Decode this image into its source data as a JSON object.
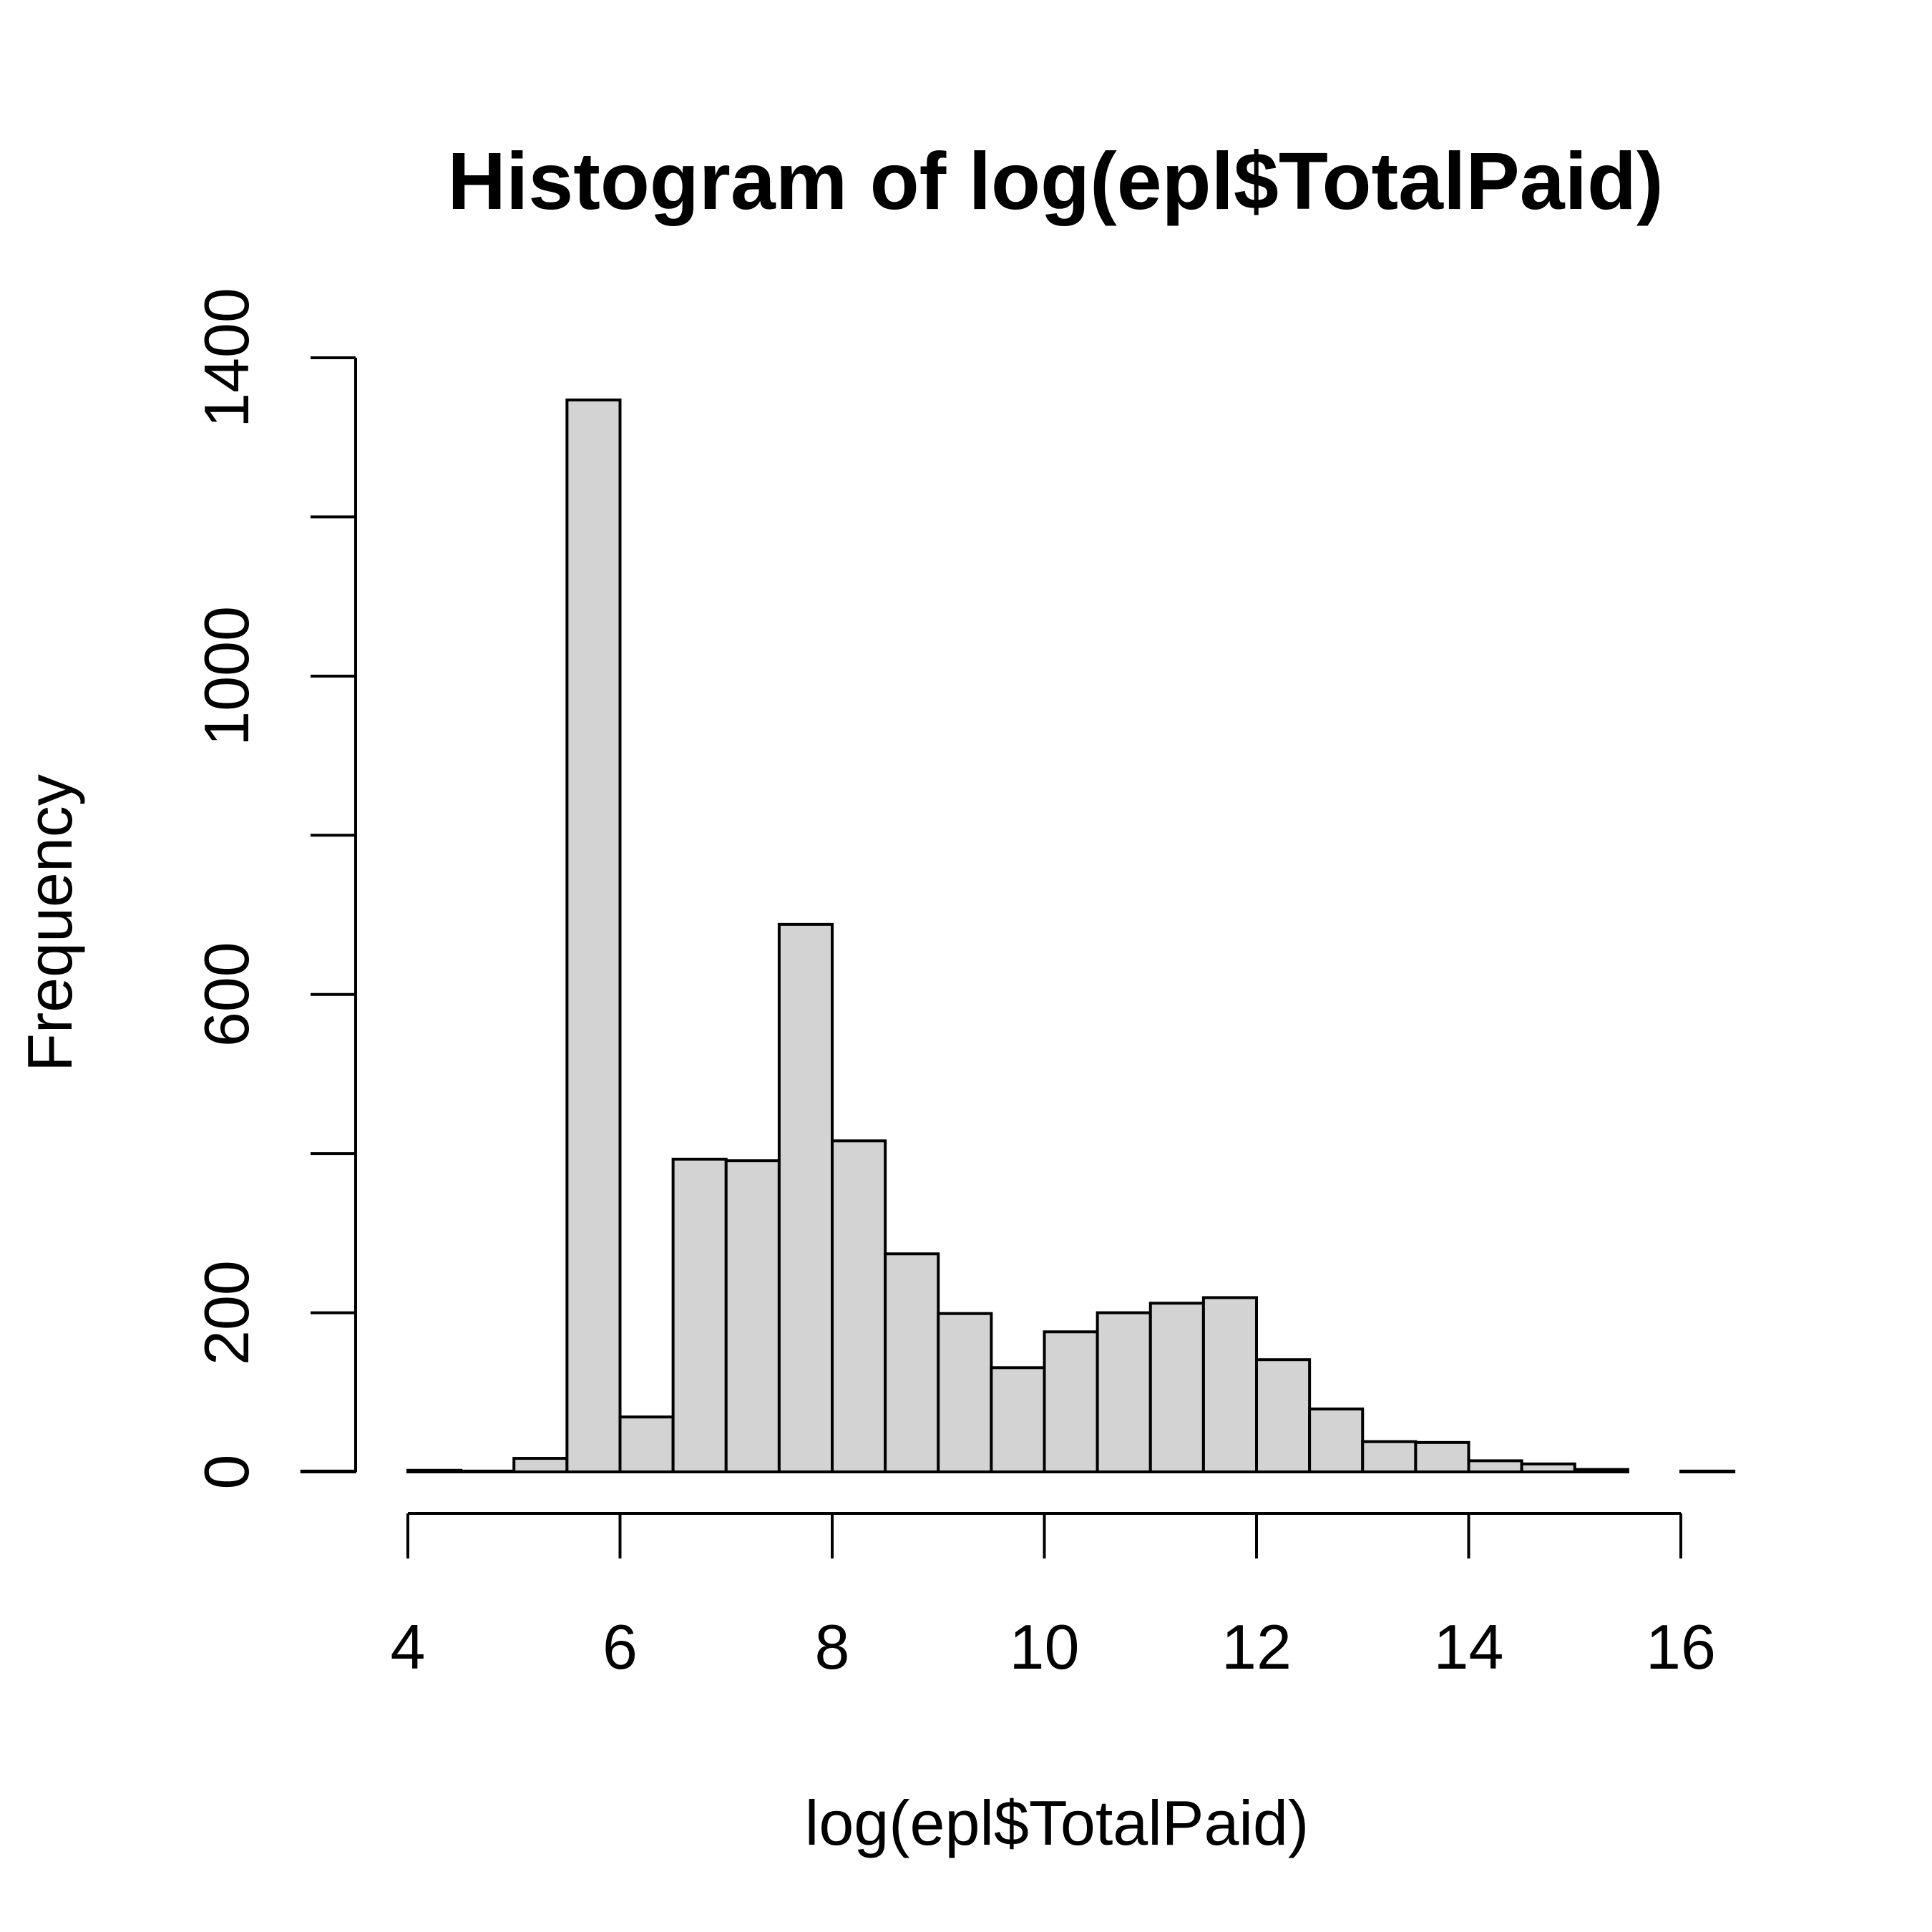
{
  "chart_data": {
    "type": "bar",
    "title": "Histogram of log(epl$TotalPaid)",
    "xlabel": "log(epl$TotalPaid)",
    "ylabel": "Frequency",
    "xlim": [
      3,
      16.5
    ],
    "ylim": [
      0,
      1400
    ],
    "x_ticks": [
      4,
      6,
      8,
      10,
      12,
      14,
      16
    ],
    "y_ticks": [
      0,
      200,
      400,
      600,
      800,
      1000,
      1200,
      1400
    ],
    "y_tick_labels": [
      "0",
      "200",
      "",
      "600",
      "",
      "1000",
      "",
      "1400"
    ],
    "bin_width": 0.5,
    "bins": [
      {
        "start": 3.0,
        "end": 3.5,
        "count": 1
      },
      {
        "start": 3.5,
        "end": 4.0,
        "count": 0
      },
      {
        "start": 4.0,
        "end": 4.5,
        "count": 2
      },
      {
        "start": 4.5,
        "end": 5.0,
        "count": 1
      },
      {
        "start": 5.0,
        "end": 5.5,
        "count": 17
      },
      {
        "start": 5.5,
        "end": 6.0,
        "count": 1347
      },
      {
        "start": 6.0,
        "end": 6.5,
        "count": 69
      },
      {
        "start": 6.5,
        "end": 7.0,
        "count": 393
      },
      {
        "start": 7.0,
        "end": 7.5,
        "count": 391
      },
      {
        "start": 7.5,
        "end": 8.0,
        "count": 688
      },
      {
        "start": 8.0,
        "end": 8.5,
        "count": 416
      },
      {
        "start": 8.5,
        "end": 9.0,
        "count": 274
      },
      {
        "start": 9.0,
        "end": 9.5,
        "count": 199
      },
      {
        "start": 9.5,
        "end": 10.0,
        "count": 131
      },
      {
        "start": 10.0,
        "end": 10.5,
        "count": 176
      },
      {
        "start": 10.5,
        "end": 11.0,
        "count": 200
      },
      {
        "start": 11.0,
        "end": 11.5,
        "count": 212
      },
      {
        "start": 11.5,
        "end": 12.0,
        "count": 219
      },
      {
        "start": 12.0,
        "end": 12.5,
        "count": 141
      },
      {
        "start": 12.5,
        "end": 13.0,
        "count": 79
      },
      {
        "start": 13.0,
        "end": 13.5,
        "count": 38
      },
      {
        "start": 13.5,
        "end": 14.0,
        "count": 37
      },
      {
        "start": 14.0,
        "end": 14.5,
        "count": 14
      },
      {
        "start": 14.5,
        "end": 15.0,
        "count": 10
      },
      {
        "start": 15.0,
        "end": 15.5,
        "count": 3
      },
      {
        "start": 15.5,
        "end": 16.0,
        "count": 0
      },
      {
        "start": 16.0,
        "end": 16.5,
        "count": 1
      }
    ],
    "bar_fill": "#d3d3d3",
    "bar_stroke": "#000000",
    "background": "#ffffff",
    "grid": false,
    "legend": "none"
  }
}
